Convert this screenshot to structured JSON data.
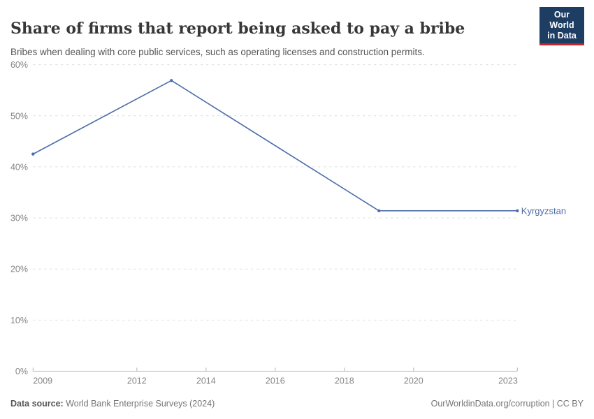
{
  "header": {
    "title": "Share of firms that report being asked to pay a bribe",
    "subtitle": "Bribes when dealing with core public services, such as operating licenses and construction permits.",
    "logo": {
      "line1": "Our World",
      "line2": "in Data",
      "bg_color": "#1d3d63",
      "accent_color": "#c0282d"
    }
  },
  "chart_data": {
    "type": "line",
    "title": "Share of firms that report being asked to pay a bribe",
    "subtitle": "Bribes when dealing with core public services, such as operating licenses and construction permits.",
    "xlabel": "",
    "ylabel": "",
    "xlim": [
      2009,
      2023
    ],
    "ylim": [
      0,
      60
    ],
    "grid": "horizontal-dashed",
    "legend_position": "end-of-line-label",
    "x_ticks": [
      {
        "value": 2009,
        "label": "2009"
      },
      {
        "value": 2012,
        "label": "2012"
      },
      {
        "value": 2014,
        "label": "2014"
      },
      {
        "value": 2016,
        "label": "2016"
      },
      {
        "value": 2018,
        "label": "2018"
      },
      {
        "value": 2020,
        "label": "2020"
      },
      {
        "value": 2023,
        "label": "2023"
      }
    ],
    "y_ticks": [
      {
        "value": 0,
        "label": "0%"
      },
      {
        "value": 10,
        "label": "10%"
      },
      {
        "value": 20,
        "label": "20%"
      },
      {
        "value": 30,
        "label": "30%"
      },
      {
        "value": 40,
        "label": "40%"
      },
      {
        "value": 50,
        "label": "50%"
      },
      {
        "value": 60,
        "label": "60%"
      }
    ],
    "series": [
      {
        "name": "Kyrgyzstan",
        "color": "#4e6ea9",
        "x": [
          2009,
          2013,
          2019,
          2023
        ],
        "values": [
          42.5,
          56.9,
          31.4,
          31.4
        ]
      }
    ]
  },
  "colors": {
    "gridline": "#dcdcdc",
    "axis": "#b3b3b3",
    "tick_label": "#858585",
    "line": "#4e6ea9"
  },
  "footer": {
    "datasource_label": "Data source:",
    "datasource_value": " World Bank Enterprise Surveys (2024)",
    "credit": "OurWorldinData.org/corruption | CC BY"
  }
}
